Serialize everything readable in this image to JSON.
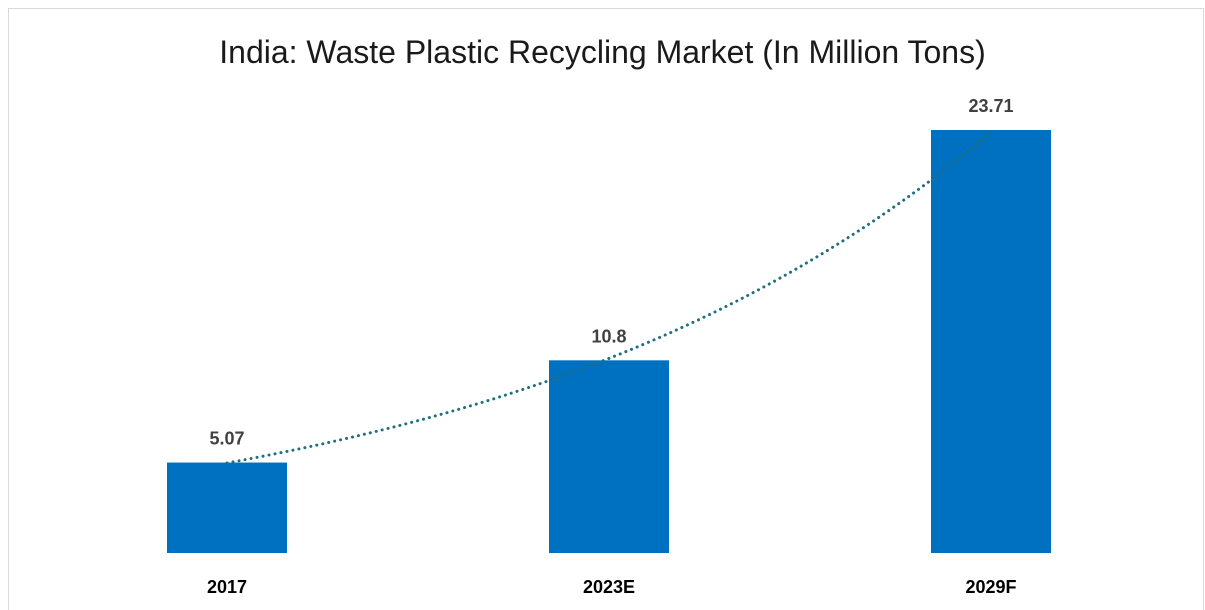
{
  "chart_data": {
    "type": "bar",
    "title": "India: Waste Plastic Recycling Market (In Million Tons)",
    "categories": [
      "2017",
      "2023E",
      "2029F"
    ],
    "values": [
      5.07,
      10.8,
      23.71
    ],
    "data_labels": [
      "5.07",
      "10.8",
      "23.71"
    ],
    "xlabel": "",
    "ylabel": "",
    "ylim": [
      0,
      25
    ],
    "trendline": "exponential",
    "grid": false,
    "legend": "none",
    "colors": {
      "bar": "#0070c0",
      "trendline": "#1f6f7f",
      "data_label": "#404040"
    }
  }
}
